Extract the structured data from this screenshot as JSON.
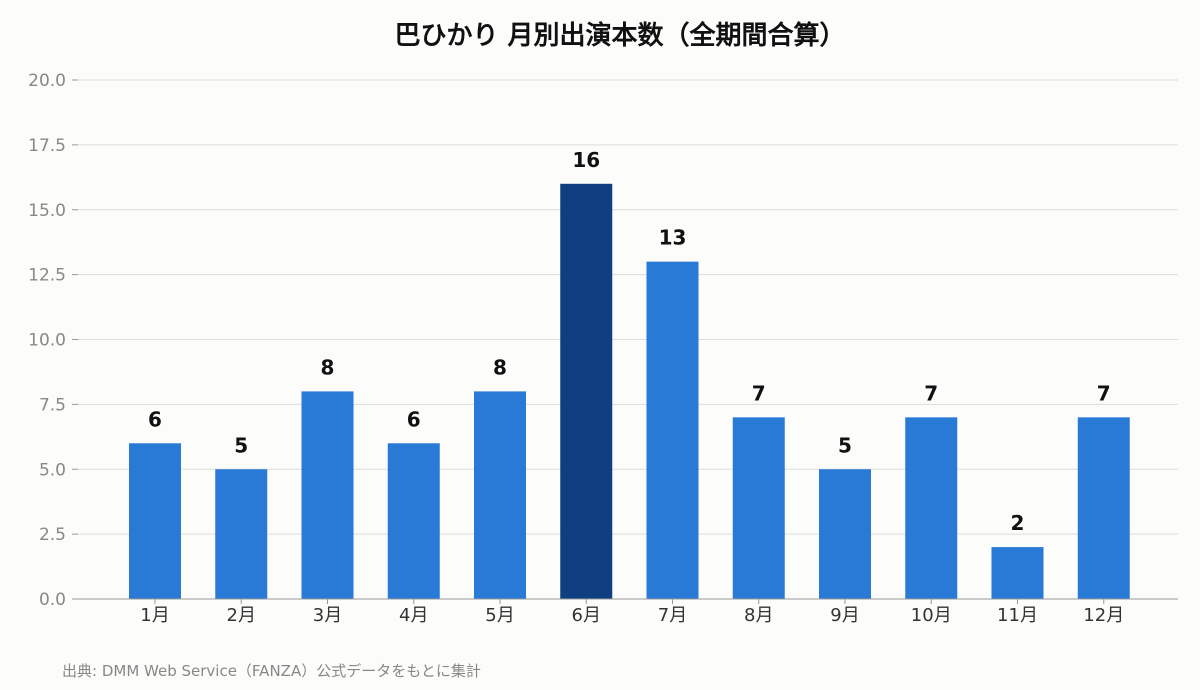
{
  "chart_data": {
    "type": "bar",
    "title": "巴ひかり 月別出演本数（全期間合算）",
    "categories": [
      "1月",
      "2月",
      "3月",
      "4月",
      "5月",
      "6月",
      "7月",
      "8月",
      "9月",
      "10月",
      "11月",
      "12月"
    ],
    "values": [
      6,
      5,
      8,
      6,
      8,
      16,
      13,
      7,
      5,
      7,
      2,
      7
    ],
    "ylim": [
      0,
      20
    ],
    "yticks": [
      "0.0",
      "2.5",
      "5.0",
      "7.5",
      "10.0",
      "12.5",
      "15.0",
      "17.5",
      "20.0"
    ],
    "xlabel": "",
    "ylabel": "",
    "grid": true,
    "highlight_index": 5,
    "colors": {
      "bar": "#2979d6",
      "highlight": "#0f3f80",
      "background": "#fcfcfa"
    }
  },
  "source_note": "出典: DMM Web Service（FANZA）公式データをもとに集計"
}
